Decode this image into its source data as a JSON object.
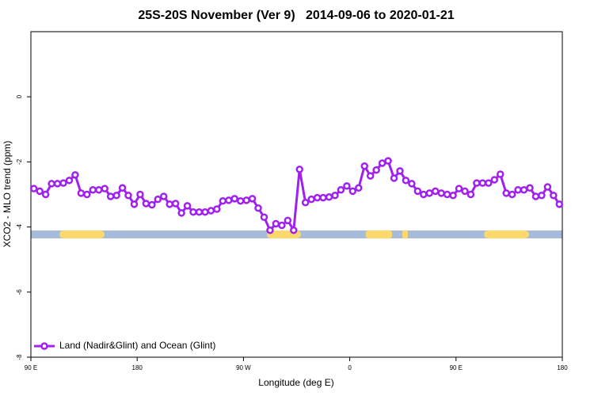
{
  "chart_data": {
    "type": "line",
    "title": "25S-20S November (Ver 9)   2014-09-06 to 2020-01-21",
    "xlabel": "Longitude (deg E)",
    "ylabel": "XCO2 - MLO trend (ppm)",
    "x": [
      92.5,
      97.5,
      102.5,
      107.5,
      112.5,
      117.5,
      122.5,
      127.5,
      132.5,
      137.5,
      142.5,
      147.5,
      152.5,
      157.5,
      162.5,
      167.5,
      172.5,
      177.5,
      182.5,
      187.5,
      192.5,
      197.5,
      202.5,
      207.5,
      212.5,
      217.5,
      222.5,
      227.5,
      232.5,
      237.5,
      242.5,
      247.5,
      252.5,
      257.5,
      262.5,
      267.5,
      272.5,
      277.5,
      282.5,
      287.5,
      292.5,
      297.5,
      302.5,
      307.5,
      312.5,
      317.5,
      322.5,
      327.5,
      332.5,
      337.5,
      342.5,
      347.5,
      352.5,
      357.5,
      362.5,
      367.5,
      372.5,
      377.5,
      382.5,
      387.5,
      392.5,
      397.5,
      402.5,
      407.5,
      412.5,
      417.5,
      422.5,
      427.5,
      432.5,
      437.5,
      442.5,
      447.5,
      452.5,
      457.5,
      462.5,
      467.5,
      472.5,
      477.5,
      482.5,
      487.5,
      492.5,
      497.5,
      502.5,
      507.5,
      512.5,
      517.5,
      522.5,
      527.5,
      532.5,
      537.5
    ],
    "series": [
      {
        "name": "Land (Nadir&Glint) and Ocean (Glint)",
        "color": "#a020f0",
        "values": [
          -2.82,
          -2.9,
          -3.0,
          -2.67,
          -2.67,
          -2.65,
          -2.57,
          -2.4,
          -2.96,
          -3.0,
          -2.86,
          -2.86,
          -2.82,
          -3.06,
          -3.03,
          -2.8,
          -3.03,
          -3.3,
          -3.0,
          -3.28,
          -3.32,
          -3.15,
          -3.06,
          -3.3,
          -3.28,
          -3.57,
          -3.35,
          -3.54,
          -3.54,
          -3.54,
          -3.5,
          -3.45,
          -3.2,
          -3.18,
          -3.13,
          -3.2,
          -3.18,
          -3.13,
          -3.42,
          -3.7,
          -4.1,
          -3.9,
          -3.95,
          -3.8,
          -4.1,
          -2.23,
          -3.25,
          -3.15,
          -3.1,
          -3.1,
          -3.08,
          -3.03,
          -2.86,
          -2.74,
          -2.9,
          -2.8,
          -2.13,
          -2.43,
          -2.25,
          -2.04,
          -1.97,
          -2.5,
          -2.28,
          -2.57,
          -2.67,
          -2.9,
          -3.0,
          -2.96,
          -2.9,
          -2.96,
          -3.0,
          -3.03,
          -2.82,
          -2.9,
          -3.0,
          -2.65,
          -2.65,
          -2.65,
          -2.55,
          -2.38,
          -2.96,
          -3.0,
          -2.86,
          -2.86,
          -2.8,
          -3.06,
          -3.03,
          -2.77,
          -3.03,
          -3.3
        ]
      }
    ],
    "xlim": [
      90,
      540
    ],
    "xticks": [
      {
        "value": 90,
        "label": "90 E"
      },
      {
        "value": 180,
        "label": "180"
      },
      {
        "value": 270,
        "label": "90 W"
      },
      {
        "value": 360,
        "label": "0"
      },
      {
        "value": 450,
        "label": "90 E"
      },
      {
        "value": 540,
        "label": "180"
      }
    ],
    "ylim": [
      -8,
      2
    ],
    "yticks": [
      0,
      -2,
      -4,
      -6,
      -8
    ],
    "legend": "bottom-left"
  }
}
